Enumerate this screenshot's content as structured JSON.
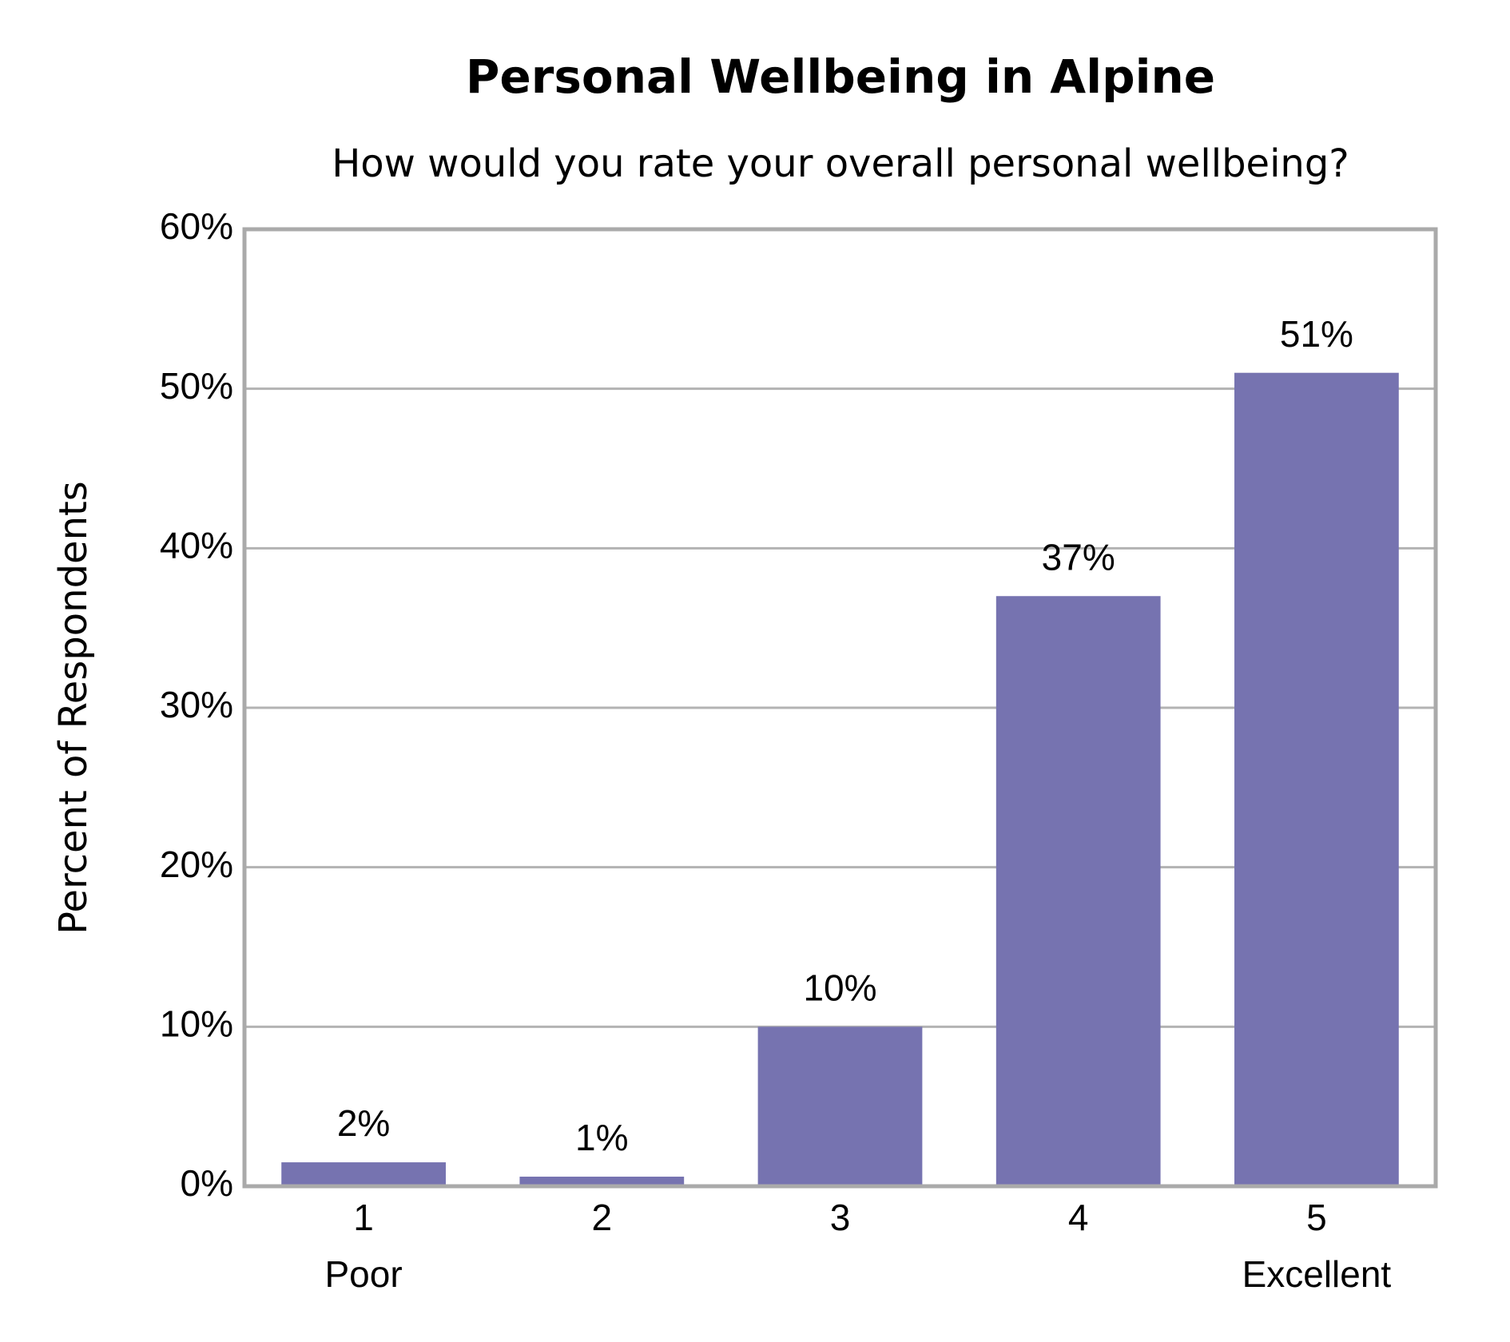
{
  "chart_data": {
    "type": "bar",
    "title": "Personal Wellbeing in Alpine",
    "subtitle": "How would you rate your overall personal wellbeing?",
    "y_label": "Percent of Respondents",
    "categories": [
      "1",
      "2",
      "3",
      "4",
      "5"
    ],
    "category_sublabels": [
      "Poor",
      null,
      null,
      null,
      "Excellent"
    ],
    "values": [
      1.5,
      0.6,
      10,
      37,
      51
    ],
    "value_labels": [
      "2%",
      "1%",
      "10%",
      "37%",
      "51%"
    ],
    "color": "#7673b0",
    "ylim": [
      0,
      60
    ],
    "yticks": [
      {
        "value": 0,
        "label": "0%"
      },
      {
        "value": 10,
        "label": "10%"
      },
      {
        "value": 20,
        "label": "20%"
      },
      {
        "value": 30,
        "label": "30%"
      },
      {
        "value": 40,
        "label": "40%"
      },
      {
        "value": 50,
        "label": "50%"
      },
      {
        "value": 60,
        "label": "60%"
      }
    ],
    "grid": true
  }
}
